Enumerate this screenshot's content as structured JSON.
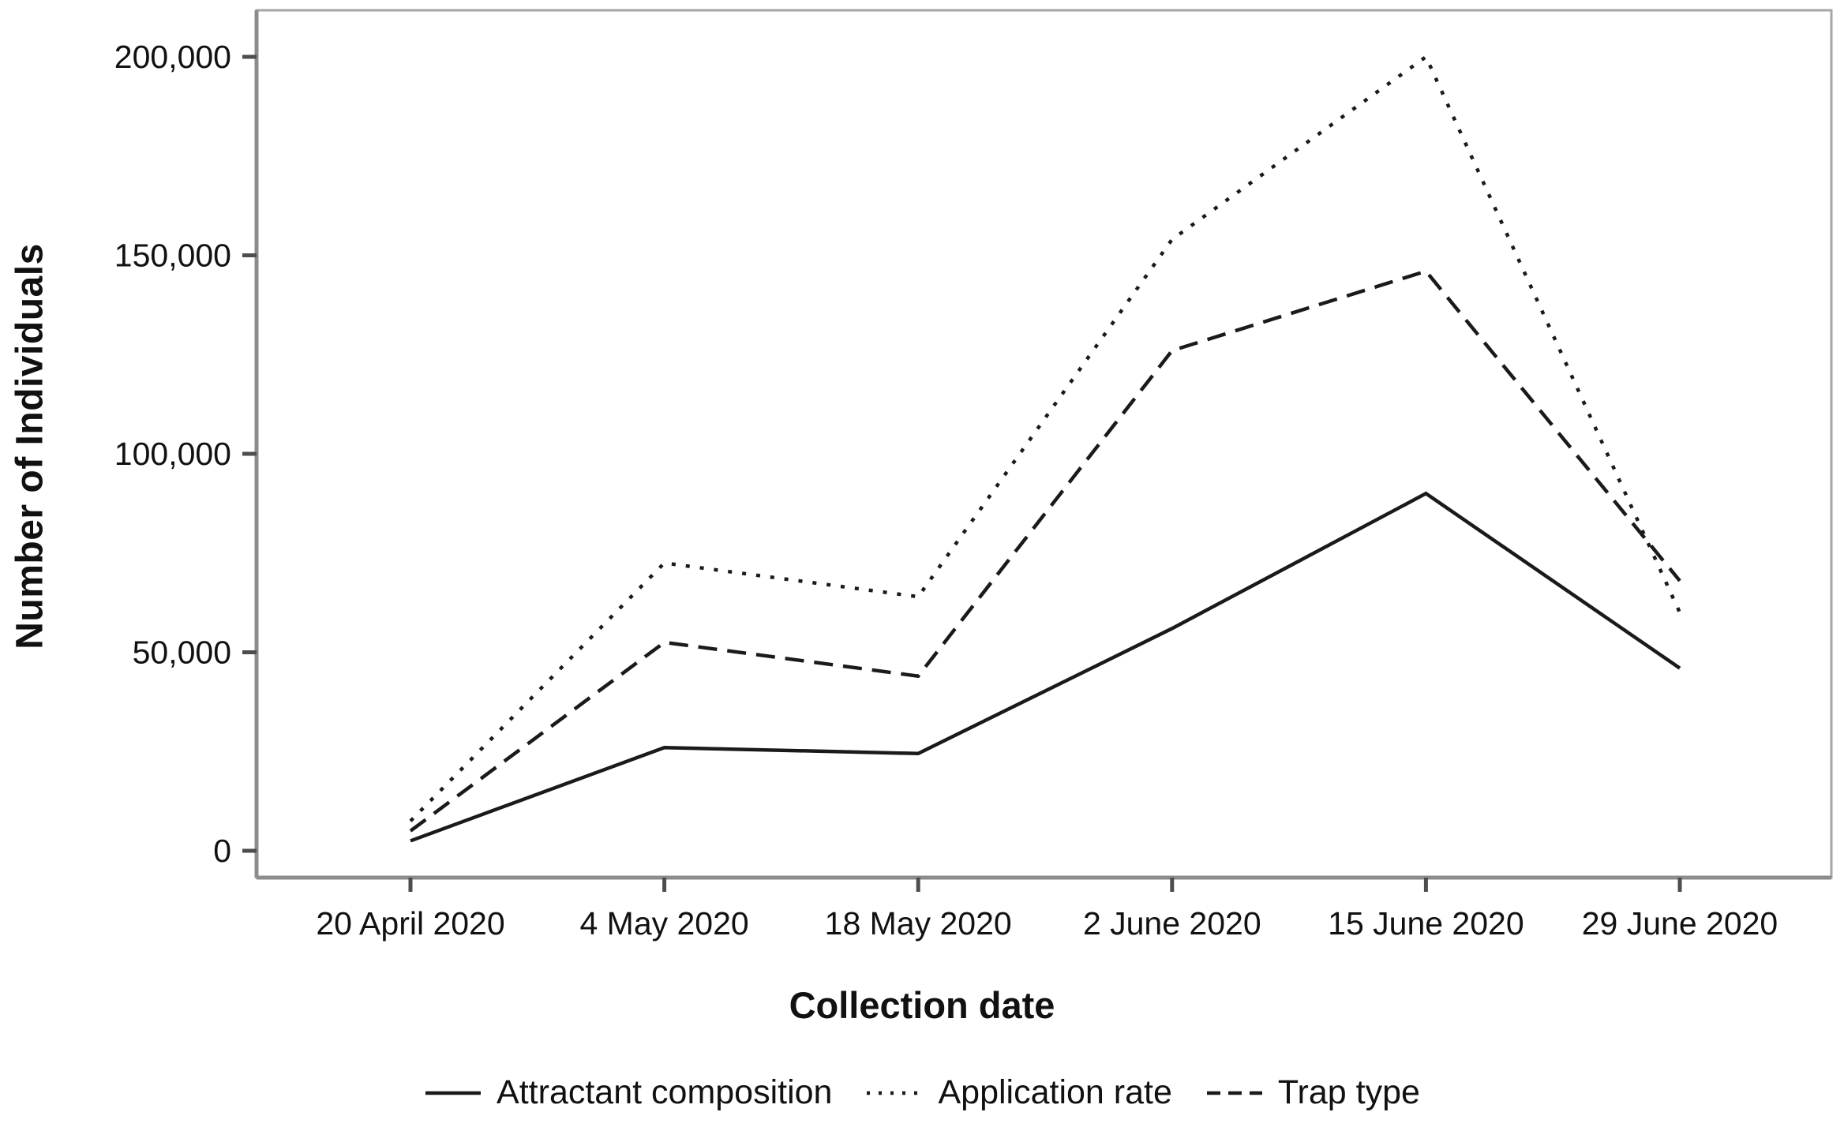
{
  "figure": {
    "background": "#ffffff",
    "text_color": "#111111",
    "frame_color": "#a6a6a6",
    "axis_color": "#8c8c8c",
    "tick_color": "#4d4d4d",
    "line_color": "#1a1a1a"
  },
  "chart_data": {
    "type": "line",
    "title": "",
    "xlabel": "Collection date",
    "ylabel": "Number of Individuals",
    "categories": [
      "20 April 2020",
      "4 May 2020",
      "18 May 2020",
      "2 June 2020",
      "15 June 2020",
      "29 June 2020"
    ],
    "y_ticks": [
      {
        "label": "0",
        "value": 0
      },
      {
        "label": "50,000",
        "value": 50000
      },
      {
        "label": "100,000",
        "value": 100000
      },
      {
        "label": "150,000",
        "value": 150000
      },
      {
        "label": "200,000",
        "value": 200000
      }
    ],
    "ylim": [
      0,
      200000
    ],
    "grid": false,
    "legend_position": "bottom",
    "series": [
      {
        "name": "Attractant composition",
        "style": "solid",
        "values": [
          2500,
          26000,
          24500,
          56000,
          90000,
          46000
        ]
      },
      {
        "name": "Application rate",
        "style": "dotted",
        "values": [
          7500,
          72500,
          64000,
          154000,
          200000,
          60000
        ]
      },
      {
        "name": "Trap type",
        "style": "dashed",
        "values": [
          5000,
          52500,
          44000,
          126000,
          146000,
          68000
        ]
      }
    ]
  }
}
